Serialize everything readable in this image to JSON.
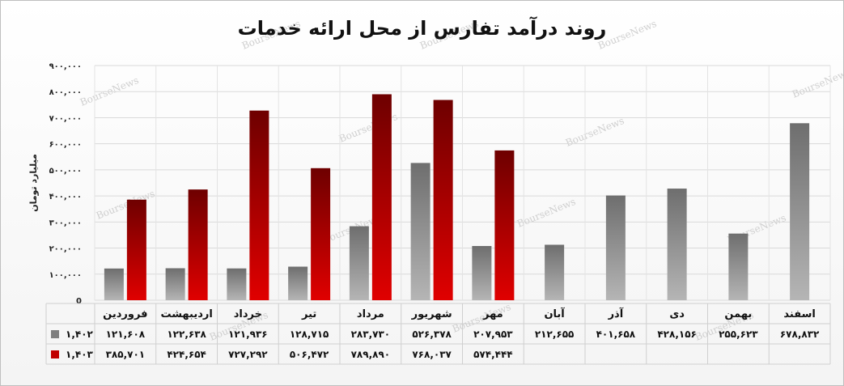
{
  "chart_data": {
    "type": "bar",
    "title": "روند درآمد تفارس از محل ارائه خدمات",
    "ylabel": "میلیارد تومان",
    "ylim": [
      0,
      900000
    ],
    "yticks": [
      0,
      100000,
      200000,
      300000,
      400000,
      500000,
      600000,
      700000,
      800000,
      900000
    ],
    "ytick_labels": [
      "0",
      "۱۰۰,۰۰۰",
      "۲۰۰,۰۰۰",
      "۳۰۰,۰۰۰",
      "۴۰۰,۰۰۰",
      "۵۰۰,۰۰۰",
      "۶۰۰,۰۰۰",
      "۷۰۰,۰۰۰",
      "۸۰۰,۰۰۰",
      "۹۰۰,۰۰۰"
    ],
    "categories": [
      "فروردین",
      "اردیبهشت",
      "خرداد",
      "تیر",
      "مرداد",
      "شهریور",
      "مهر",
      "آبان",
      "آذر",
      "دی",
      "بهمن",
      "اسفند"
    ],
    "series": [
      {
        "name": "۱,۴۰۲",
        "color": "#7f7f7f",
        "values": [
          121608,
          122638,
          121936,
          128715,
          283730,
          526378,
          207953,
          212655,
          401658,
          428156,
          255623,
          678832
        ],
        "labels": [
          "۱۲۱,۶۰۸",
          "۱۲۲,۶۳۸",
          "۱۲۱,۹۳۶",
          "۱۲۸,۷۱۵",
          "۲۸۳,۷۳۰",
          "۵۲۶,۳۷۸",
          "۲۰۷,۹۵۳",
          "۲۱۲,۶۵۵",
          "۴۰۱,۶۵۸",
          "۴۲۸,۱۵۶",
          "۲۵۵,۶۲۳",
          "۶۷۸,۸۳۲"
        ]
      },
      {
        "name": "۱,۴۰۳",
        "color": "#c00000",
        "values": [
          385701,
          424654,
          727292,
          506472,
          789890,
          768037,
          574444,
          null,
          null,
          null,
          null,
          null
        ],
        "labels": [
          "۳۸۵,۷۰۱",
          "۴۲۴,۶۵۴",
          "۷۲۷,۲۹۲",
          "۵۰۶,۴۷۲",
          "۷۸۹,۸۹۰",
          "۷۶۸,۰۳۷",
          "۵۷۴,۴۴۴",
          "",
          "",
          "",
          "",
          ""
        ]
      }
    ],
    "grid": true,
    "legend": "data-table"
  },
  "watermark": "BourseNews"
}
